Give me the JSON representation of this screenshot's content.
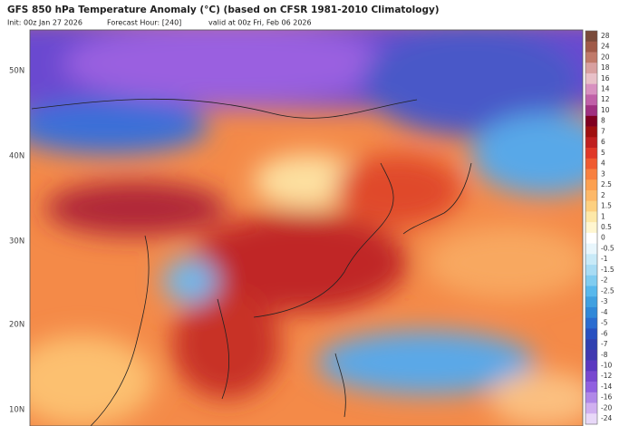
{
  "header": {
    "title": "GFS 850 hPa Temperature Anomaly (°C) (based on CFSR 1981-2010 Climatology)",
    "init": "Init: 00z Jan 27 2026",
    "forecast_hour": "Forecast Hour: [240]",
    "valid": "valid at 00z Fri, Feb 06 2026"
  },
  "latitude_labels": [
    "50N",
    "40N",
    "30N",
    "20N",
    "10N"
  ],
  "colorbar": {
    "levels": [
      28,
      24,
      20,
      18,
      16,
      14,
      12,
      10,
      8,
      7,
      6,
      5,
      4,
      3,
      2.5,
      2,
      1.5,
      1,
      0.5,
      0,
      -0.5,
      -1,
      -1.5,
      -2,
      -2.5,
      -3,
      -4,
      -5,
      -6,
      -7,
      -8,
      -10,
      -12,
      -14,
      -16,
      -20,
      -24
    ],
    "colors": [
      "#7a4a3a",
      "#a05a48",
      "#c07a6a",
      "#d8a0a0",
      "#e8c0c8",
      "#d890c0",
      "#c060a8",
      "#a03080",
      "#800020",
      "#a01010",
      "#c02020",
      "#e03828",
      "#f05a30",
      "#f88040",
      "#fca050",
      "#fdb868",
      "#fdd080",
      "#fde8a8",
      "#fff6d0",
      "#ffffff",
      "#e8f6fc",
      "#c8eaf8",
      "#a8dcf4",
      "#80ccf0",
      "#58b8ec",
      "#40a0e0",
      "#3088d8",
      "#2a6cd0",
      "#2850c0",
      "#3040b0",
      "#4038b0",
      "#5a38c0",
      "#7848d0",
      "#9060e0",
      "#b088e8",
      "#d0b0f0",
      "#e8d8f8"
    ]
  }
}
